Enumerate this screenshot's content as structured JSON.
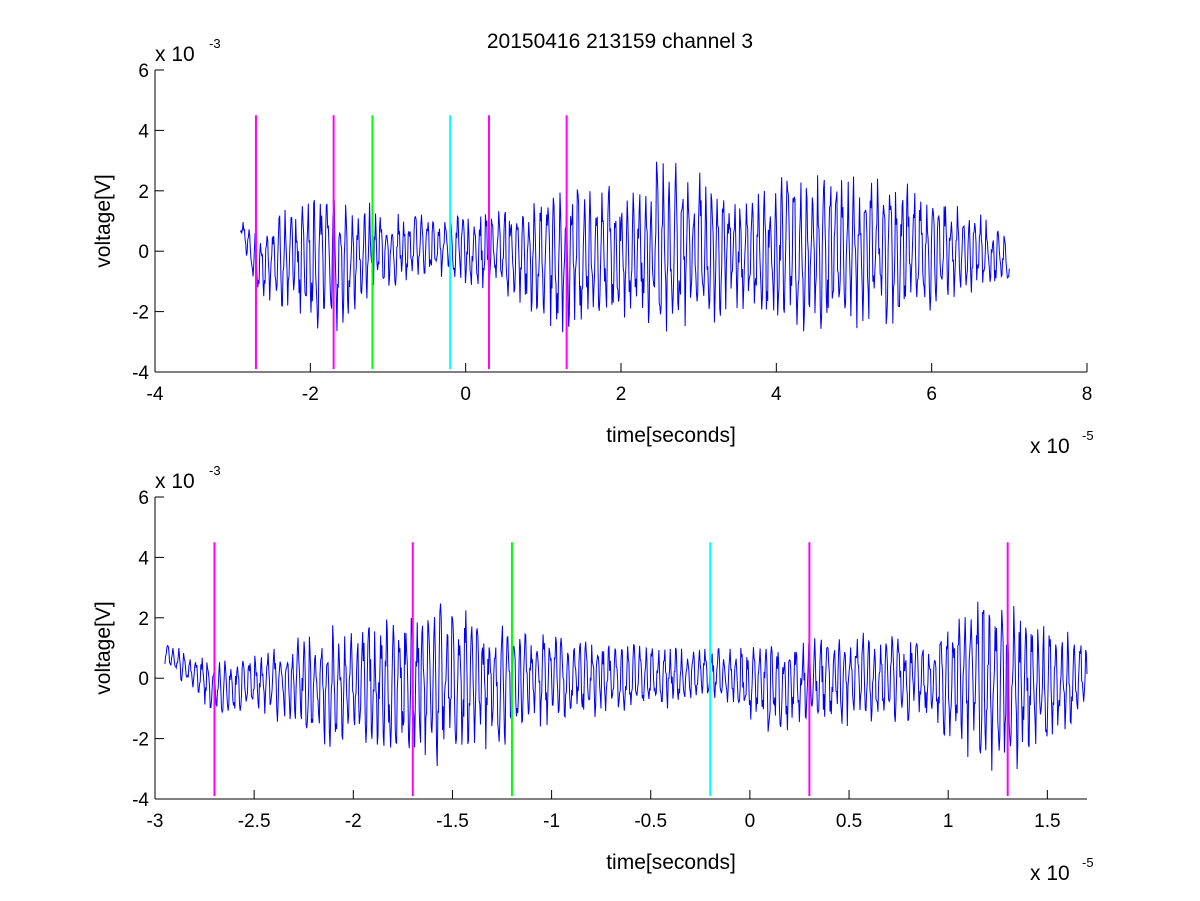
{
  "title": "20150416 213159 channel 3",
  "colors": {
    "signal": "#0000ff",
    "marker_magenta": "#ff00ff",
    "marker_green": "#00ff00",
    "marker_cyan": "#00ffff",
    "axes": "#000000"
  },
  "chart_data": [
    {
      "type": "line",
      "title": "20150416 213159 channel 3",
      "xlabel": "time[seconds]",
      "ylabel": "voltage[V]",
      "x_multiplier_label": "x 10",
      "x_multiplier_exponent": "-5",
      "y_multiplier_label": "x 10",
      "y_multiplier_exponent": "-3",
      "xlim": [
        -4,
        8
      ],
      "ylim": [
        -4,
        6
      ],
      "xticks": [
        -4,
        -2,
        0,
        2,
        4,
        6,
        8
      ],
      "xtick_labels": [
        "-4",
        "-2",
        "0",
        "2",
        "4",
        "6",
        "8"
      ],
      "yticks": [
        -4,
        -2,
        0,
        2,
        4,
        6
      ],
      "ytick_labels": [
        "-4",
        "-2",
        "0",
        "2",
        "4",
        "6"
      ],
      "grid": false,
      "series": [
        {
          "color": "#0000ff",
          "x_range": [
            -2.9,
            7.0
          ],
          "envelope": [
            {
              "x": -2.9,
              "amp": 0.4,
              "offset": 0.8
            },
            {
              "x": -2.7,
              "amp": 1.0,
              "offset": -0.4
            },
            {
              "x": -2.2,
              "amp": 2.0,
              "offset": -0.3
            },
            {
              "x": -1.7,
              "amp": 2.6,
              "offset": -0.3
            },
            {
              "x": -1.2,
              "amp": 1.7,
              "offset": 0.0
            },
            {
              "x": -0.5,
              "amp": 1.0,
              "offset": 0.2
            },
            {
              "x": 0.3,
              "amp": 1.4,
              "offset": 0.0
            },
            {
              "x": 1.2,
              "amp": 2.6,
              "offset": -0.2
            },
            {
              "x": 2.0,
              "amp": 2.2,
              "offset": 0.0
            },
            {
              "x": 2.5,
              "amp": 3.0,
              "offset": 0.2
            },
            {
              "x": 3.5,
              "amp": 2.2,
              "offset": 0.0
            },
            {
              "x": 4.5,
              "amp": 2.9,
              "offset": 0.0
            },
            {
              "x": 5.5,
              "amp": 2.6,
              "offset": 0.0
            },
            {
              "x": 6.5,
              "amp": 1.5,
              "offset": 0.0
            },
            {
              "x": 7.0,
              "amp": 0.9,
              "offset": -0.3
            }
          ]
        }
      ],
      "markers": [
        {
          "x": -2.7,
          "color": "#ff00ff",
          "y_range": [
            -3.9,
            4.5
          ]
        },
        {
          "x": -1.7,
          "color": "#ff00ff",
          "y_range": [
            -3.9,
            4.5
          ]
        },
        {
          "x": -1.2,
          "color": "#00ff00",
          "y_range": [
            -3.9,
            4.5
          ]
        },
        {
          "x": -0.2,
          "color": "#00ffff",
          "y_range": [
            -3.9,
            4.5
          ]
        },
        {
          "x": 0.3,
          "color": "#ff00ff",
          "y_range": [
            -3.9,
            4.5
          ]
        },
        {
          "x": 1.3,
          "color": "#ff00ff",
          "y_range": [
            -3.9,
            4.5
          ]
        }
      ]
    },
    {
      "type": "line",
      "title": "",
      "xlabel": "time[seconds]",
      "ylabel": "voltage[V]",
      "x_multiplier_label": "x 10",
      "x_multiplier_exponent": "-5",
      "y_multiplier_label": "x 10",
      "y_multiplier_exponent": "-3",
      "xlim": [
        -3.0,
        1.7
      ],
      "ylim": [
        -4,
        6
      ],
      "xticks": [
        -3,
        -2.5,
        -2,
        -1.5,
        -1,
        -0.5,
        0,
        0.5,
        1,
        1.5
      ],
      "xtick_labels": [
        "-3",
        "-2.5",
        "-2",
        "-1.5",
        "-1",
        "-0.5",
        "0",
        "0.5",
        "1",
        "1.5"
      ],
      "yticks": [
        -4,
        -2,
        0,
        2,
        4,
        6
      ],
      "ytick_labels": [
        "-4",
        "-2",
        "0",
        "2",
        "4",
        "6"
      ],
      "grid": false,
      "series": [
        {
          "color": "#0000ff",
          "x_range": [
            -2.95,
            1.7
          ],
          "envelope": [
            {
              "x": -2.95,
              "amp": 0.4,
              "offset": 0.8
            },
            {
              "x": -2.7,
              "amp": 0.9,
              "offset": -0.3
            },
            {
              "x": -2.4,
              "amp": 1.2,
              "offset": -0.2
            },
            {
              "x": -2.1,
              "amp": 2.2,
              "offset": -0.3
            },
            {
              "x": -1.8,
              "amp": 2.4,
              "offset": -0.2
            },
            {
              "x": -1.6,
              "amp": 2.9,
              "offset": -0.1
            },
            {
              "x": -1.3,
              "amp": 2.4,
              "offset": -0.2
            },
            {
              "x": -1.0,
              "amp": 1.5,
              "offset": 0.0
            },
            {
              "x": -0.5,
              "amp": 1.2,
              "offset": 0.0
            },
            {
              "x": -0.2,
              "amp": 0.8,
              "offset": 0.2
            },
            {
              "x": 0.1,
              "amp": 1.6,
              "offset": -0.3
            },
            {
              "x": 0.5,
              "amp": 1.6,
              "offset": 0.0
            },
            {
              "x": 0.9,
              "amp": 1.4,
              "offset": 0.0
            },
            {
              "x": 1.1,
              "amp": 3.0,
              "offset": 0.0
            },
            {
              "x": 1.3,
              "amp": 3.0,
              "offset": -0.3
            },
            {
              "x": 1.7,
              "amp": 1.2,
              "offset": 0.0
            }
          ]
        }
      ],
      "markers": [
        {
          "x": -2.7,
          "color": "#ff00ff",
          "y_range": [
            -3.9,
            4.5
          ]
        },
        {
          "x": -1.7,
          "color": "#ff00ff",
          "y_range": [
            -3.9,
            4.5
          ]
        },
        {
          "x": -1.2,
          "color": "#00ff00",
          "y_range": [
            -3.9,
            4.5
          ]
        },
        {
          "x": -0.2,
          "color": "#00ffff",
          "y_range": [
            -3.9,
            4.5
          ]
        },
        {
          "x": 0.3,
          "color": "#ff00ff",
          "y_range": [
            -3.9,
            4.5
          ]
        },
        {
          "x": 1.3,
          "color": "#ff00ff",
          "y_range": [
            -3.9,
            4.5
          ]
        }
      ]
    }
  ]
}
